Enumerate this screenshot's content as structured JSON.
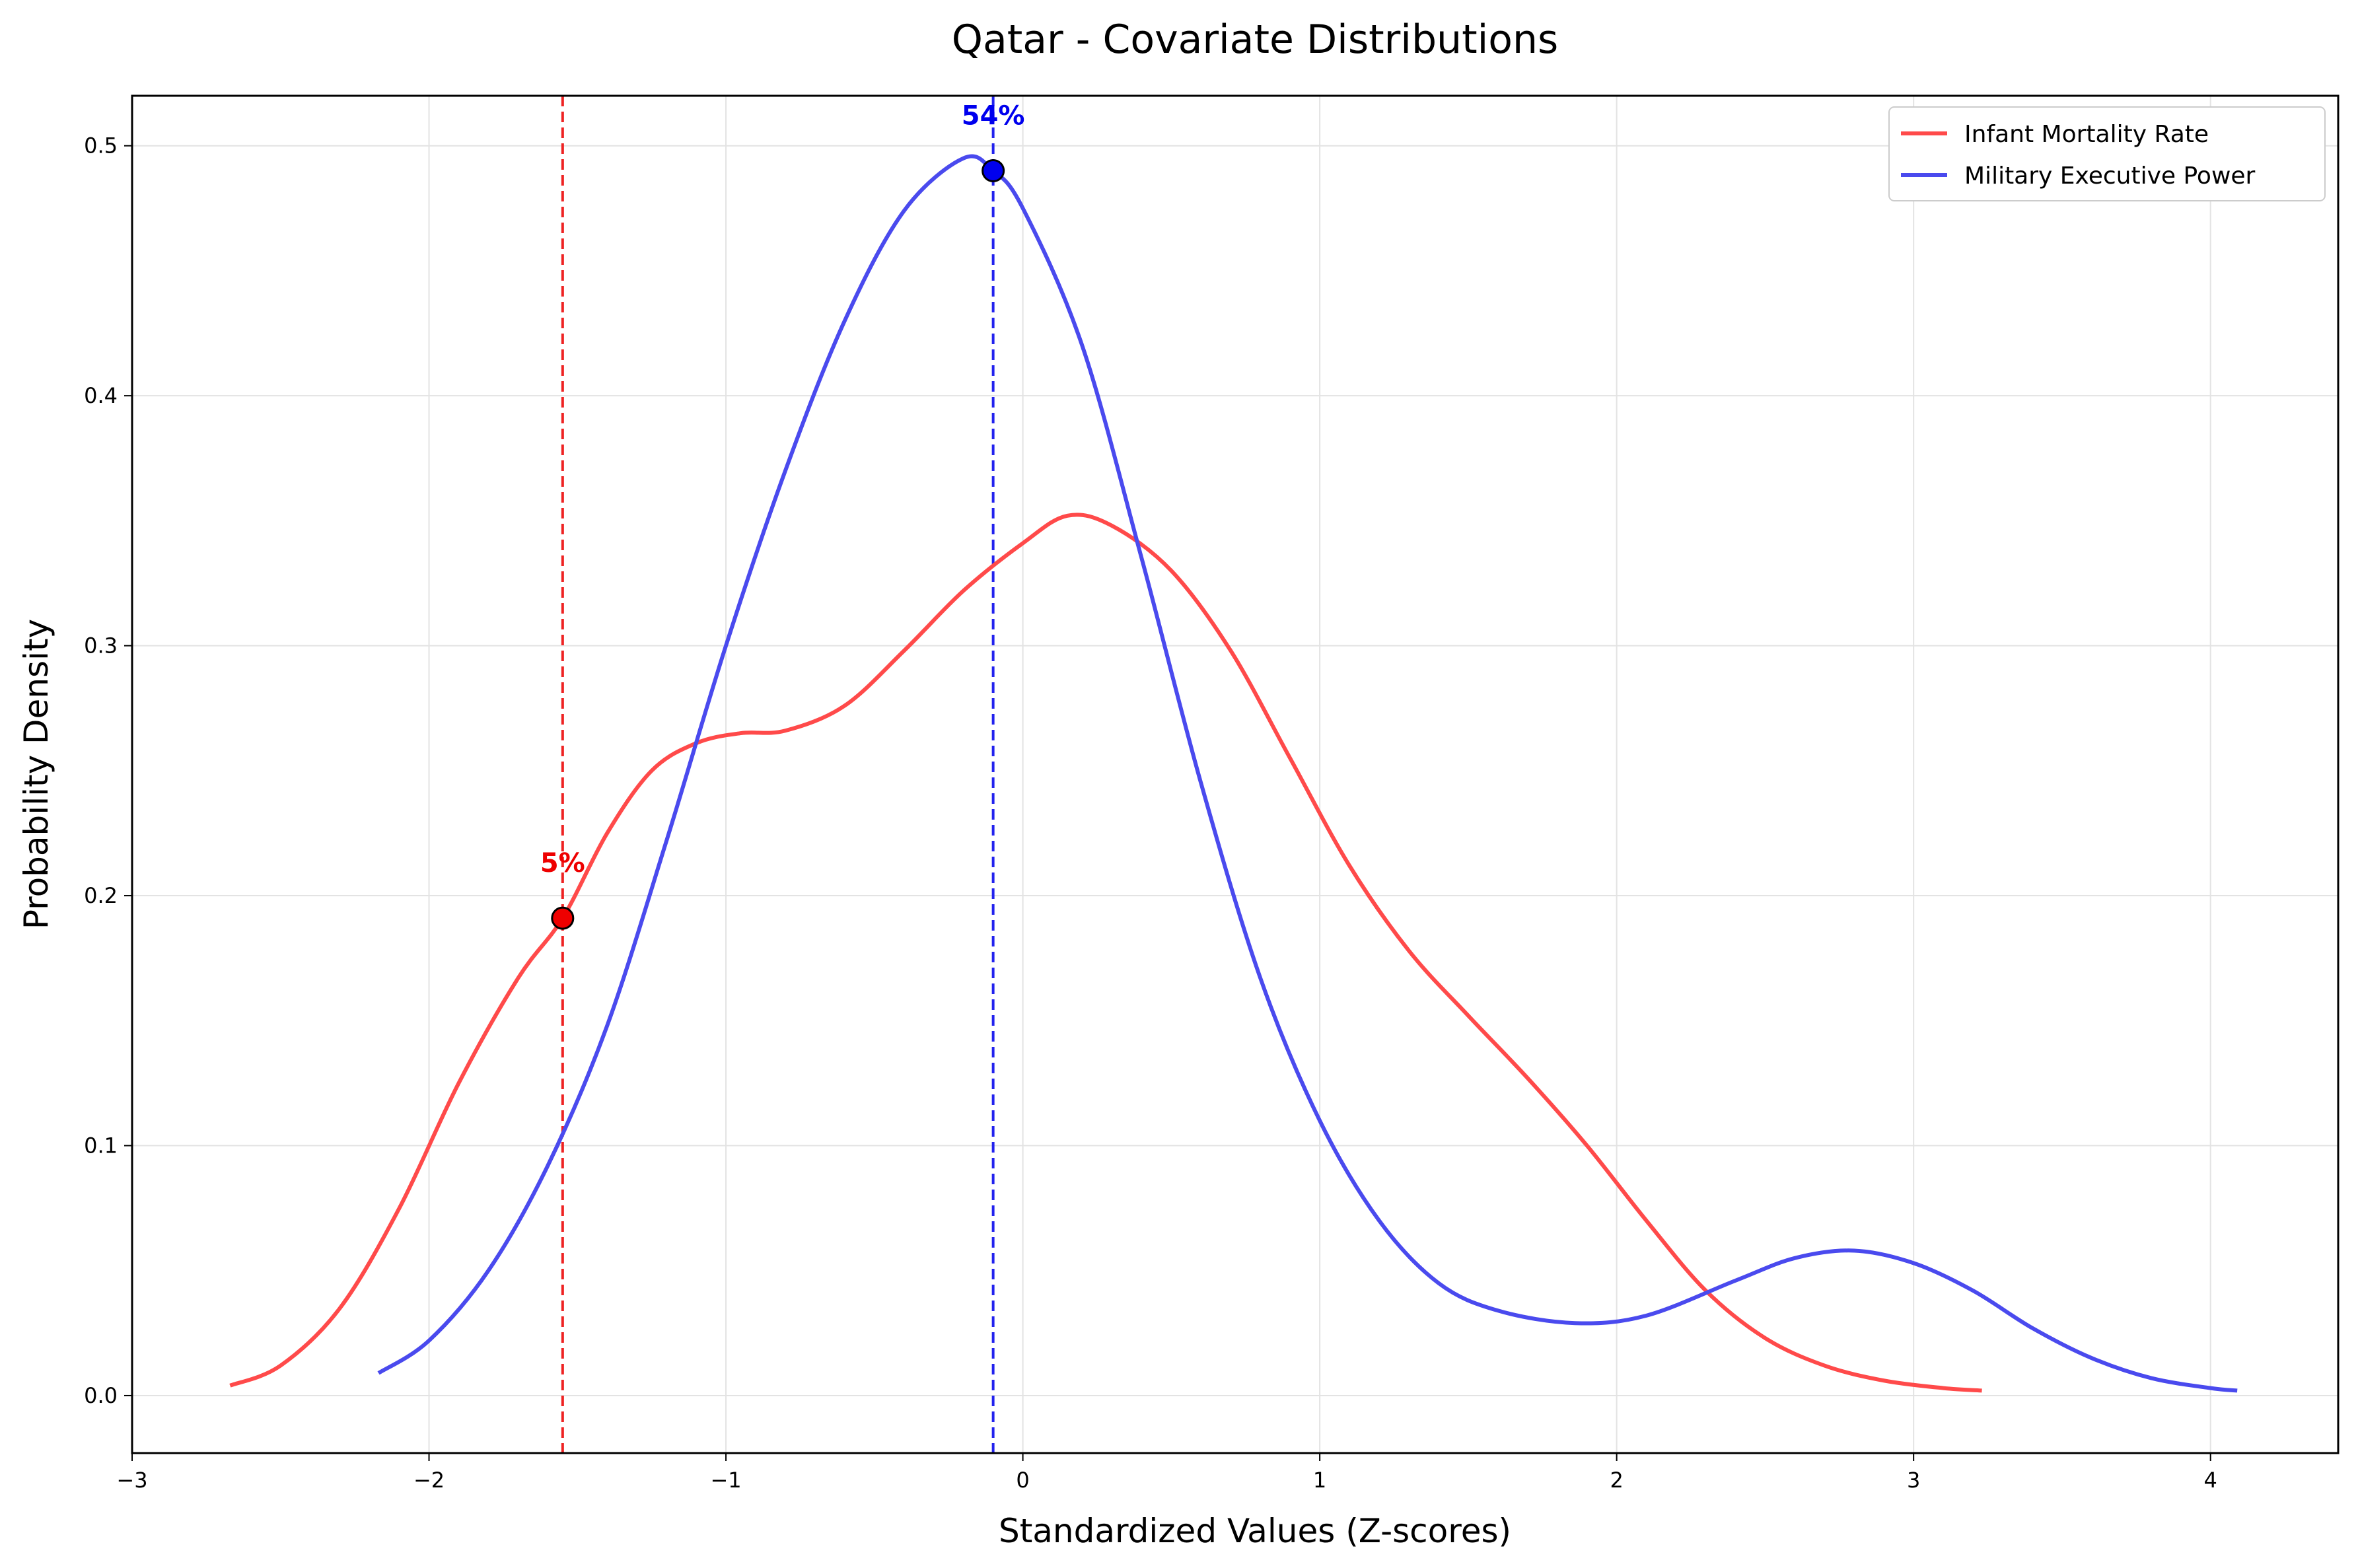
{
  "chart_data": {
    "type": "line",
    "title": "Qatar - Covariate Distributions",
    "xlabel": "Standardized Values (Z-scores)",
    "ylabel": "Probability Density",
    "xlim": [
      -3,
      4.43
    ],
    "ylim": [
      -0.023,
      0.52
    ],
    "xticks": [
      -3,
      -2,
      -1,
      0,
      1,
      2,
      3,
      4
    ],
    "xtick_labels": [
      "−3",
      "−2",
      "−1",
      "0",
      "1",
      "2",
      "3",
      "4"
    ],
    "yticks": [
      0.0,
      0.1,
      0.2,
      0.3,
      0.4,
      0.5
    ],
    "ytick_labels": [
      "0.0",
      "0.1",
      "0.2",
      "0.3",
      "0.4",
      "0.5"
    ],
    "grid": true,
    "legend_position": "top-right",
    "series": [
      {
        "name": "Infant Mortality Rate",
        "color": "#ff4a4a",
        "points": [
          [
            -2.67,
            0.004
          ],
          [
            -2.5,
            0.012
          ],
          [
            -2.3,
            0.035
          ],
          [
            -2.1,
            0.075
          ],
          [
            -1.9,
            0.125
          ],
          [
            -1.7,
            0.167
          ],
          [
            -1.55,
            0.191
          ],
          [
            -1.4,
            0.225
          ],
          [
            -1.25,
            0.25
          ],
          [
            -1.1,
            0.261
          ],
          [
            -0.95,
            0.265
          ],
          [
            -0.8,
            0.266
          ],
          [
            -0.6,
            0.276
          ],
          [
            -0.4,
            0.298
          ],
          [
            -0.2,
            0.322
          ],
          [
            0.0,
            0.341
          ],
          [
            0.15,
            0.352
          ],
          [
            0.3,
            0.348
          ],
          [
            0.5,
            0.33
          ],
          [
            0.7,
            0.298
          ],
          [
            0.9,
            0.255
          ],
          [
            1.1,
            0.212
          ],
          [
            1.3,
            0.178
          ],
          [
            1.5,
            0.152
          ],
          [
            1.7,
            0.127
          ],
          [
            1.9,
            0.1
          ],
          [
            2.1,
            0.07
          ],
          [
            2.3,
            0.042
          ],
          [
            2.5,
            0.023
          ],
          [
            2.7,
            0.012
          ],
          [
            2.9,
            0.006
          ],
          [
            3.1,
            0.003
          ],
          [
            3.23,
            0.002
          ]
        ],
        "marker": {
          "x": -1.55,
          "y": 0.191,
          "label": "5%"
        }
      },
      {
        "name": "Military Executive Power",
        "color": "#4a4aee",
        "points": [
          [
            -2.17,
            0.009
          ],
          [
            -2.0,
            0.022
          ],
          [
            -1.8,
            0.05
          ],
          [
            -1.6,
            0.092
          ],
          [
            -1.4,
            0.148
          ],
          [
            -1.2,
            0.222
          ],
          [
            -1.0,
            0.3
          ],
          [
            -0.8,
            0.37
          ],
          [
            -0.6,
            0.43
          ],
          [
            -0.4,
            0.474
          ],
          [
            -0.2,
            0.495
          ],
          [
            -0.1,
            0.49
          ],
          [
            0.0,
            0.475
          ],
          [
            0.2,
            0.42
          ],
          [
            0.4,
            0.335
          ],
          [
            0.6,
            0.245
          ],
          [
            0.8,
            0.167
          ],
          [
            1.0,
            0.11
          ],
          [
            1.2,
            0.07
          ],
          [
            1.4,
            0.045
          ],
          [
            1.6,
            0.034
          ],
          [
            1.86,
            0.029
          ],
          [
            2.1,
            0.032
          ],
          [
            2.4,
            0.046
          ],
          [
            2.6,
            0.055
          ],
          [
            2.8,
            0.058
          ],
          [
            3.0,
            0.053
          ],
          [
            3.2,
            0.042
          ],
          [
            3.4,
            0.027
          ],
          [
            3.6,
            0.015
          ],
          [
            3.8,
            0.007
          ],
          [
            4.0,
            0.003
          ],
          [
            4.09,
            0.002
          ]
        ],
        "marker": {
          "x": -0.1,
          "y": 0.49,
          "label": "54%"
        }
      }
    ]
  }
}
